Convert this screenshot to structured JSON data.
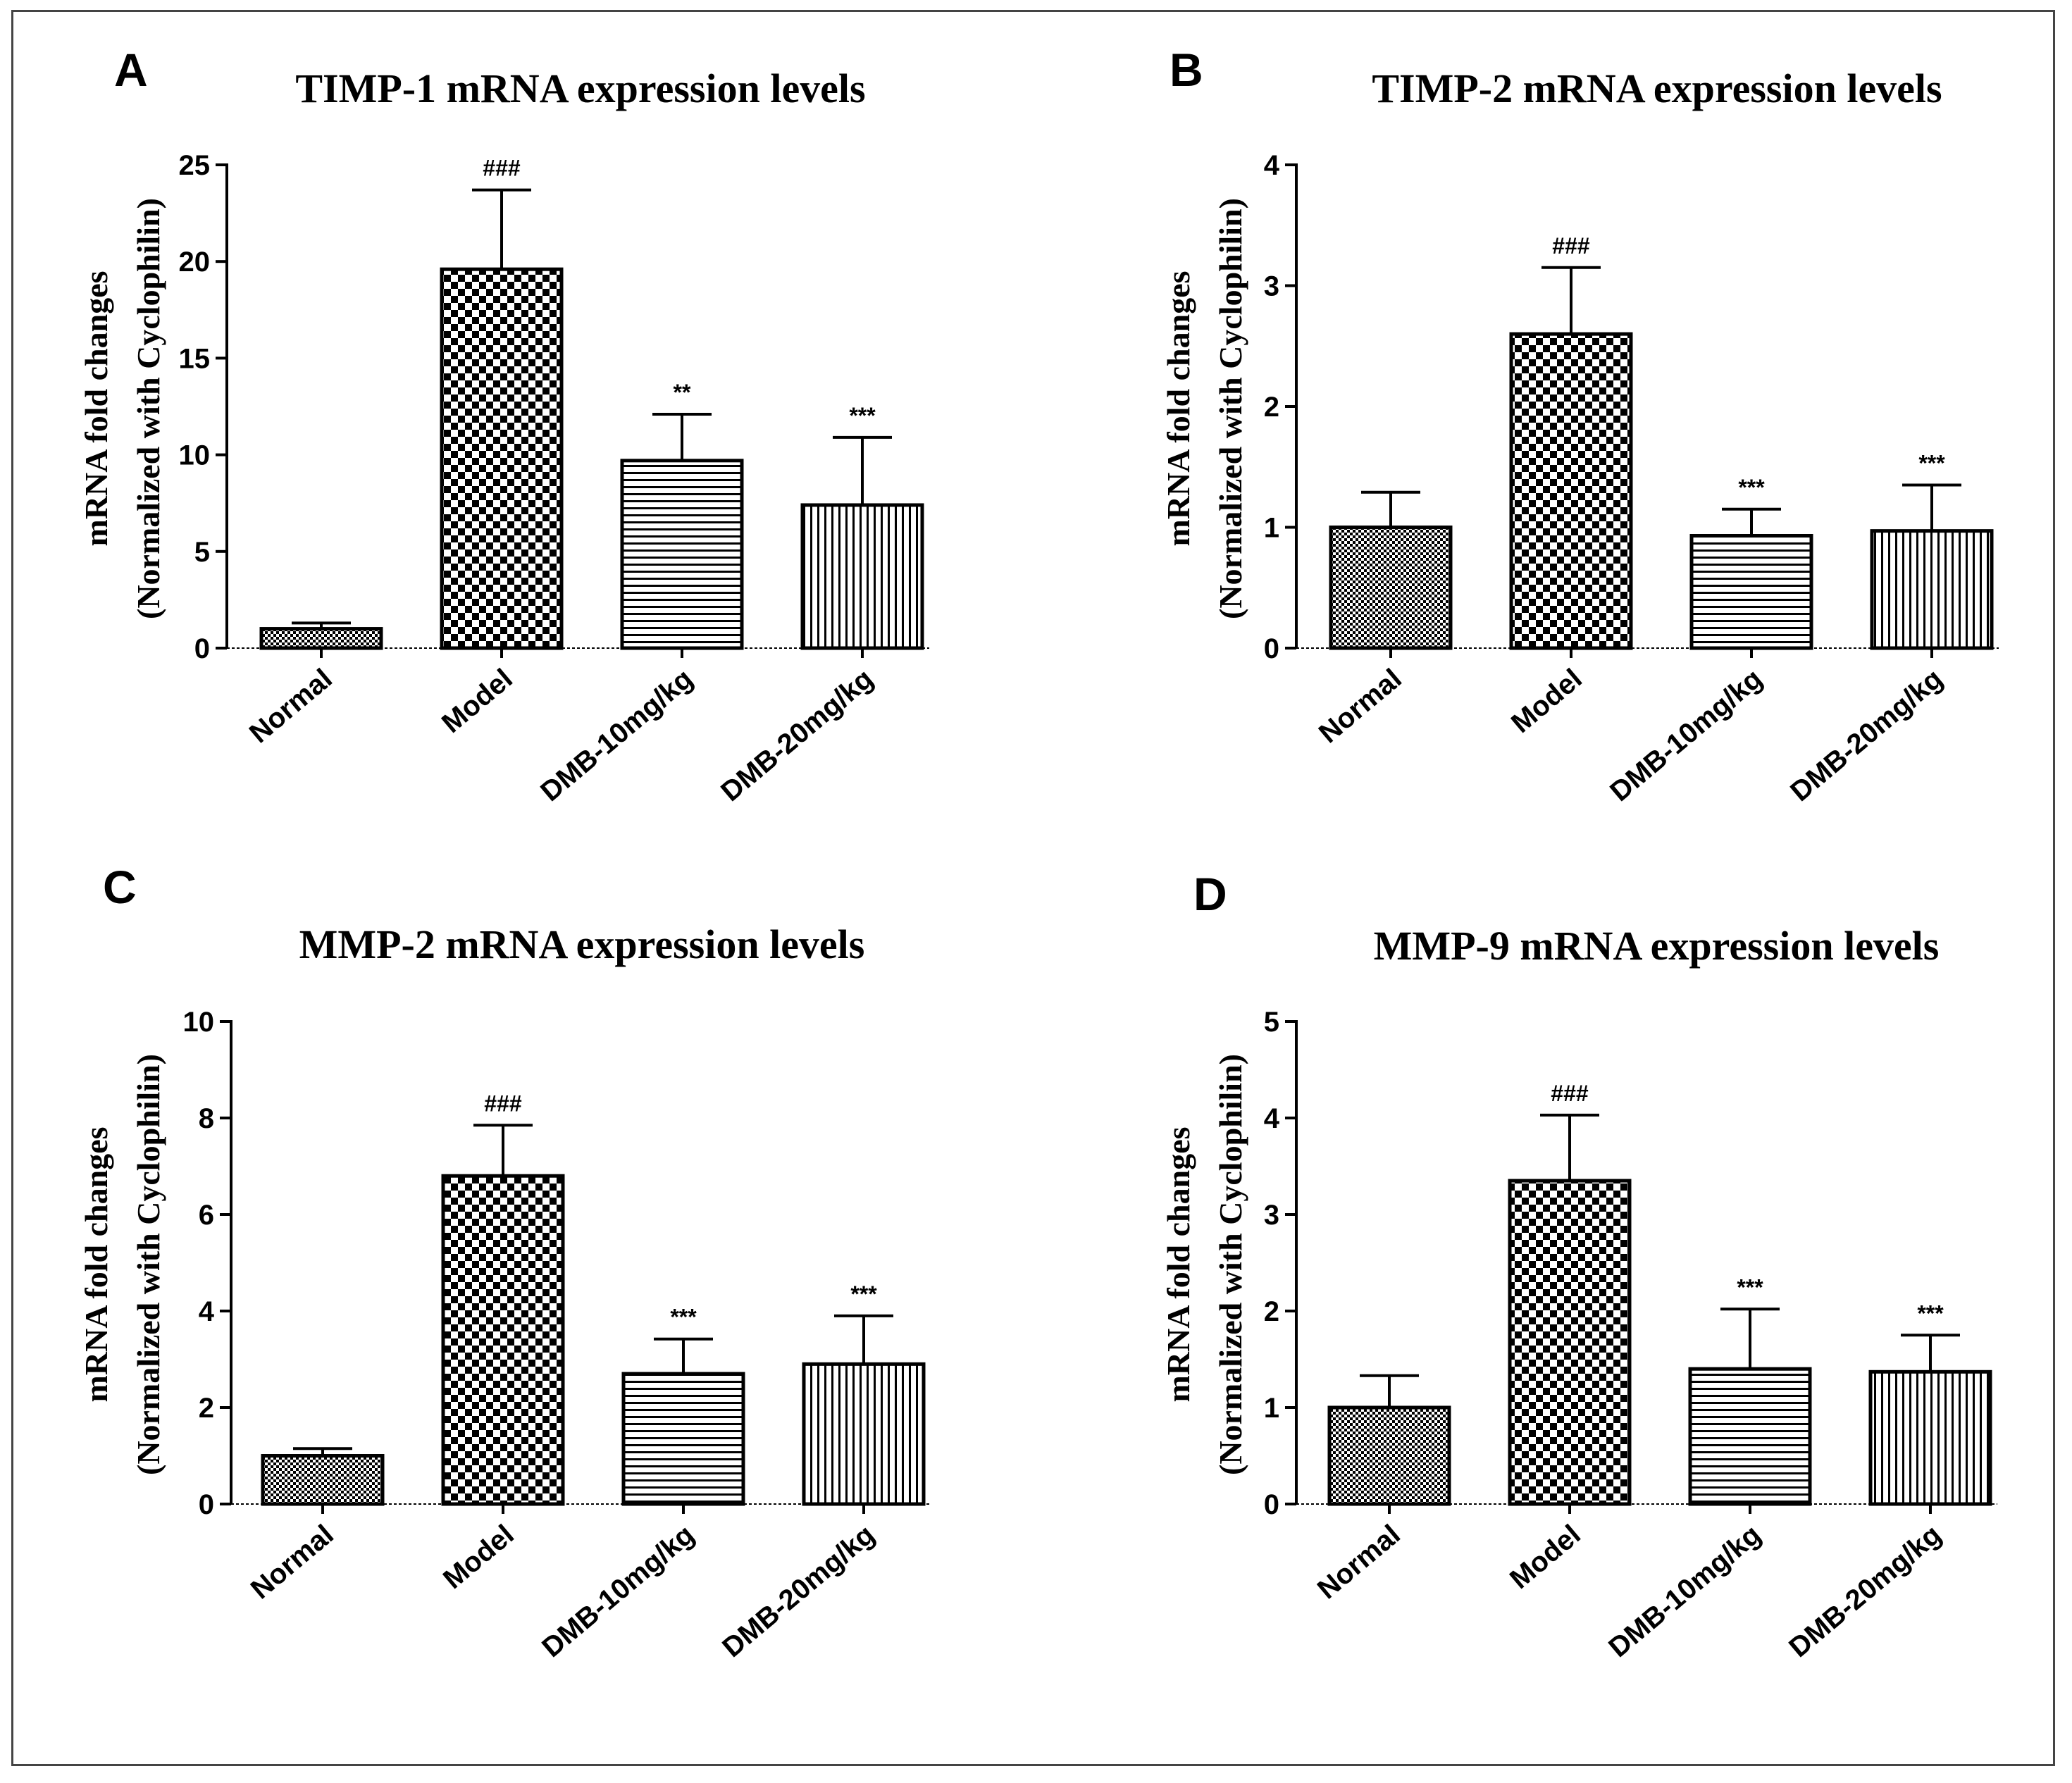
{
  "chart_data": [
    {
      "type": "bar",
      "panel_letter": "A",
      "title": "TIMP-1 mRNA expression levels",
      "ylabel_line1": "mRNA fold changes",
      "ylabel_line2": "(Normalized with Cyclophilin)",
      "xlabel": "",
      "categories": [
        "Normal",
        "Model",
        "DMB-10mg/kg",
        "DMB-20mg/kg"
      ],
      "values": [
        1.0,
        19.6,
        9.7,
        7.4
      ],
      "errors": [
        0.3,
        4.1,
        2.4,
        3.5
      ],
      "significance": [
        "",
        "###",
        "**",
        "***"
      ],
      "patterns": [
        "fine-check",
        "coarse-check",
        "horizontal",
        "vertical"
      ],
      "ylim": [
        0,
        25
      ],
      "yticks": [
        0,
        5,
        10,
        15,
        20,
        25
      ]
    },
    {
      "type": "bar",
      "panel_letter": "B",
      "title": "TIMP-2 mRNA expression levels",
      "ylabel_line1": "mRNA fold changes",
      "ylabel_line2": "(Normalized with Cyclophilin)",
      "xlabel": "",
      "categories": [
        "Normal",
        "Model",
        "DMB-10mg/kg",
        "DMB-20mg/kg"
      ],
      "values": [
        1.0,
        2.6,
        0.93,
        0.97
      ],
      "errors": [
        0.29,
        0.55,
        0.22,
        0.38
      ],
      "significance": [
        "",
        "###",
        "***",
        "***"
      ],
      "patterns": [
        "fine-check",
        "coarse-check",
        "horizontal",
        "vertical"
      ],
      "ylim": [
        0,
        4
      ],
      "yticks": [
        0,
        1,
        2,
        3,
        4
      ]
    },
    {
      "type": "bar",
      "panel_letter": "C",
      "title": "MMP-2 mRNA expression levels",
      "ylabel_line1": "mRNA fold changes",
      "ylabel_line2": "(Normalized with Cyclophilin)",
      "xlabel": "",
      "categories": [
        "Normal",
        "Model",
        "DMB-10mg/kg",
        "DMB-20mg/kg"
      ],
      "values": [
        1.0,
        6.8,
        2.7,
        2.9
      ],
      "errors": [
        0.15,
        1.05,
        0.72,
        1.0
      ],
      "significance": [
        "",
        "###",
        "***",
        "***"
      ],
      "patterns": [
        "fine-check",
        "coarse-check",
        "horizontal",
        "vertical"
      ],
      "ylim": [
        0,
        10
      ],
      "yticks": [
        0,
        2,
        4,
        6,
        8,
        10
      ]
    },
    {
      "type": "bar",
      "panel_letter": "D",
      "title": "MMP-9 mRNA expression levels",
      "ylabel_line1": "mRNA fold changes",
      "ylabel_line2": "(Normalized with Cyclophilin)",
      "xlabel": "",
      "categories": [
        "Normal",
        "Model",
        "DMB-10mg/kg",
        "DMB-20mg/kg"
      ],
      "values": [
        1.0,
        3.35,
        1.4,
        1.37
      ],
      "errors": [
        0.33,
        0.68,
        0.62,
        0.38
      ],
      "significance": [
        "",
        "###",
        "***",
        "***"
      ],
      "patterns": [
        "fine-check",
        "coarse-check",
        "horizontal",
        "vertical"
      ],
      "ylim": [
        0,
        5
      ],
      "yticks": [
        0,
        1,
        2,
        3,
        4,
        5
      ]
    }
  ]
}
